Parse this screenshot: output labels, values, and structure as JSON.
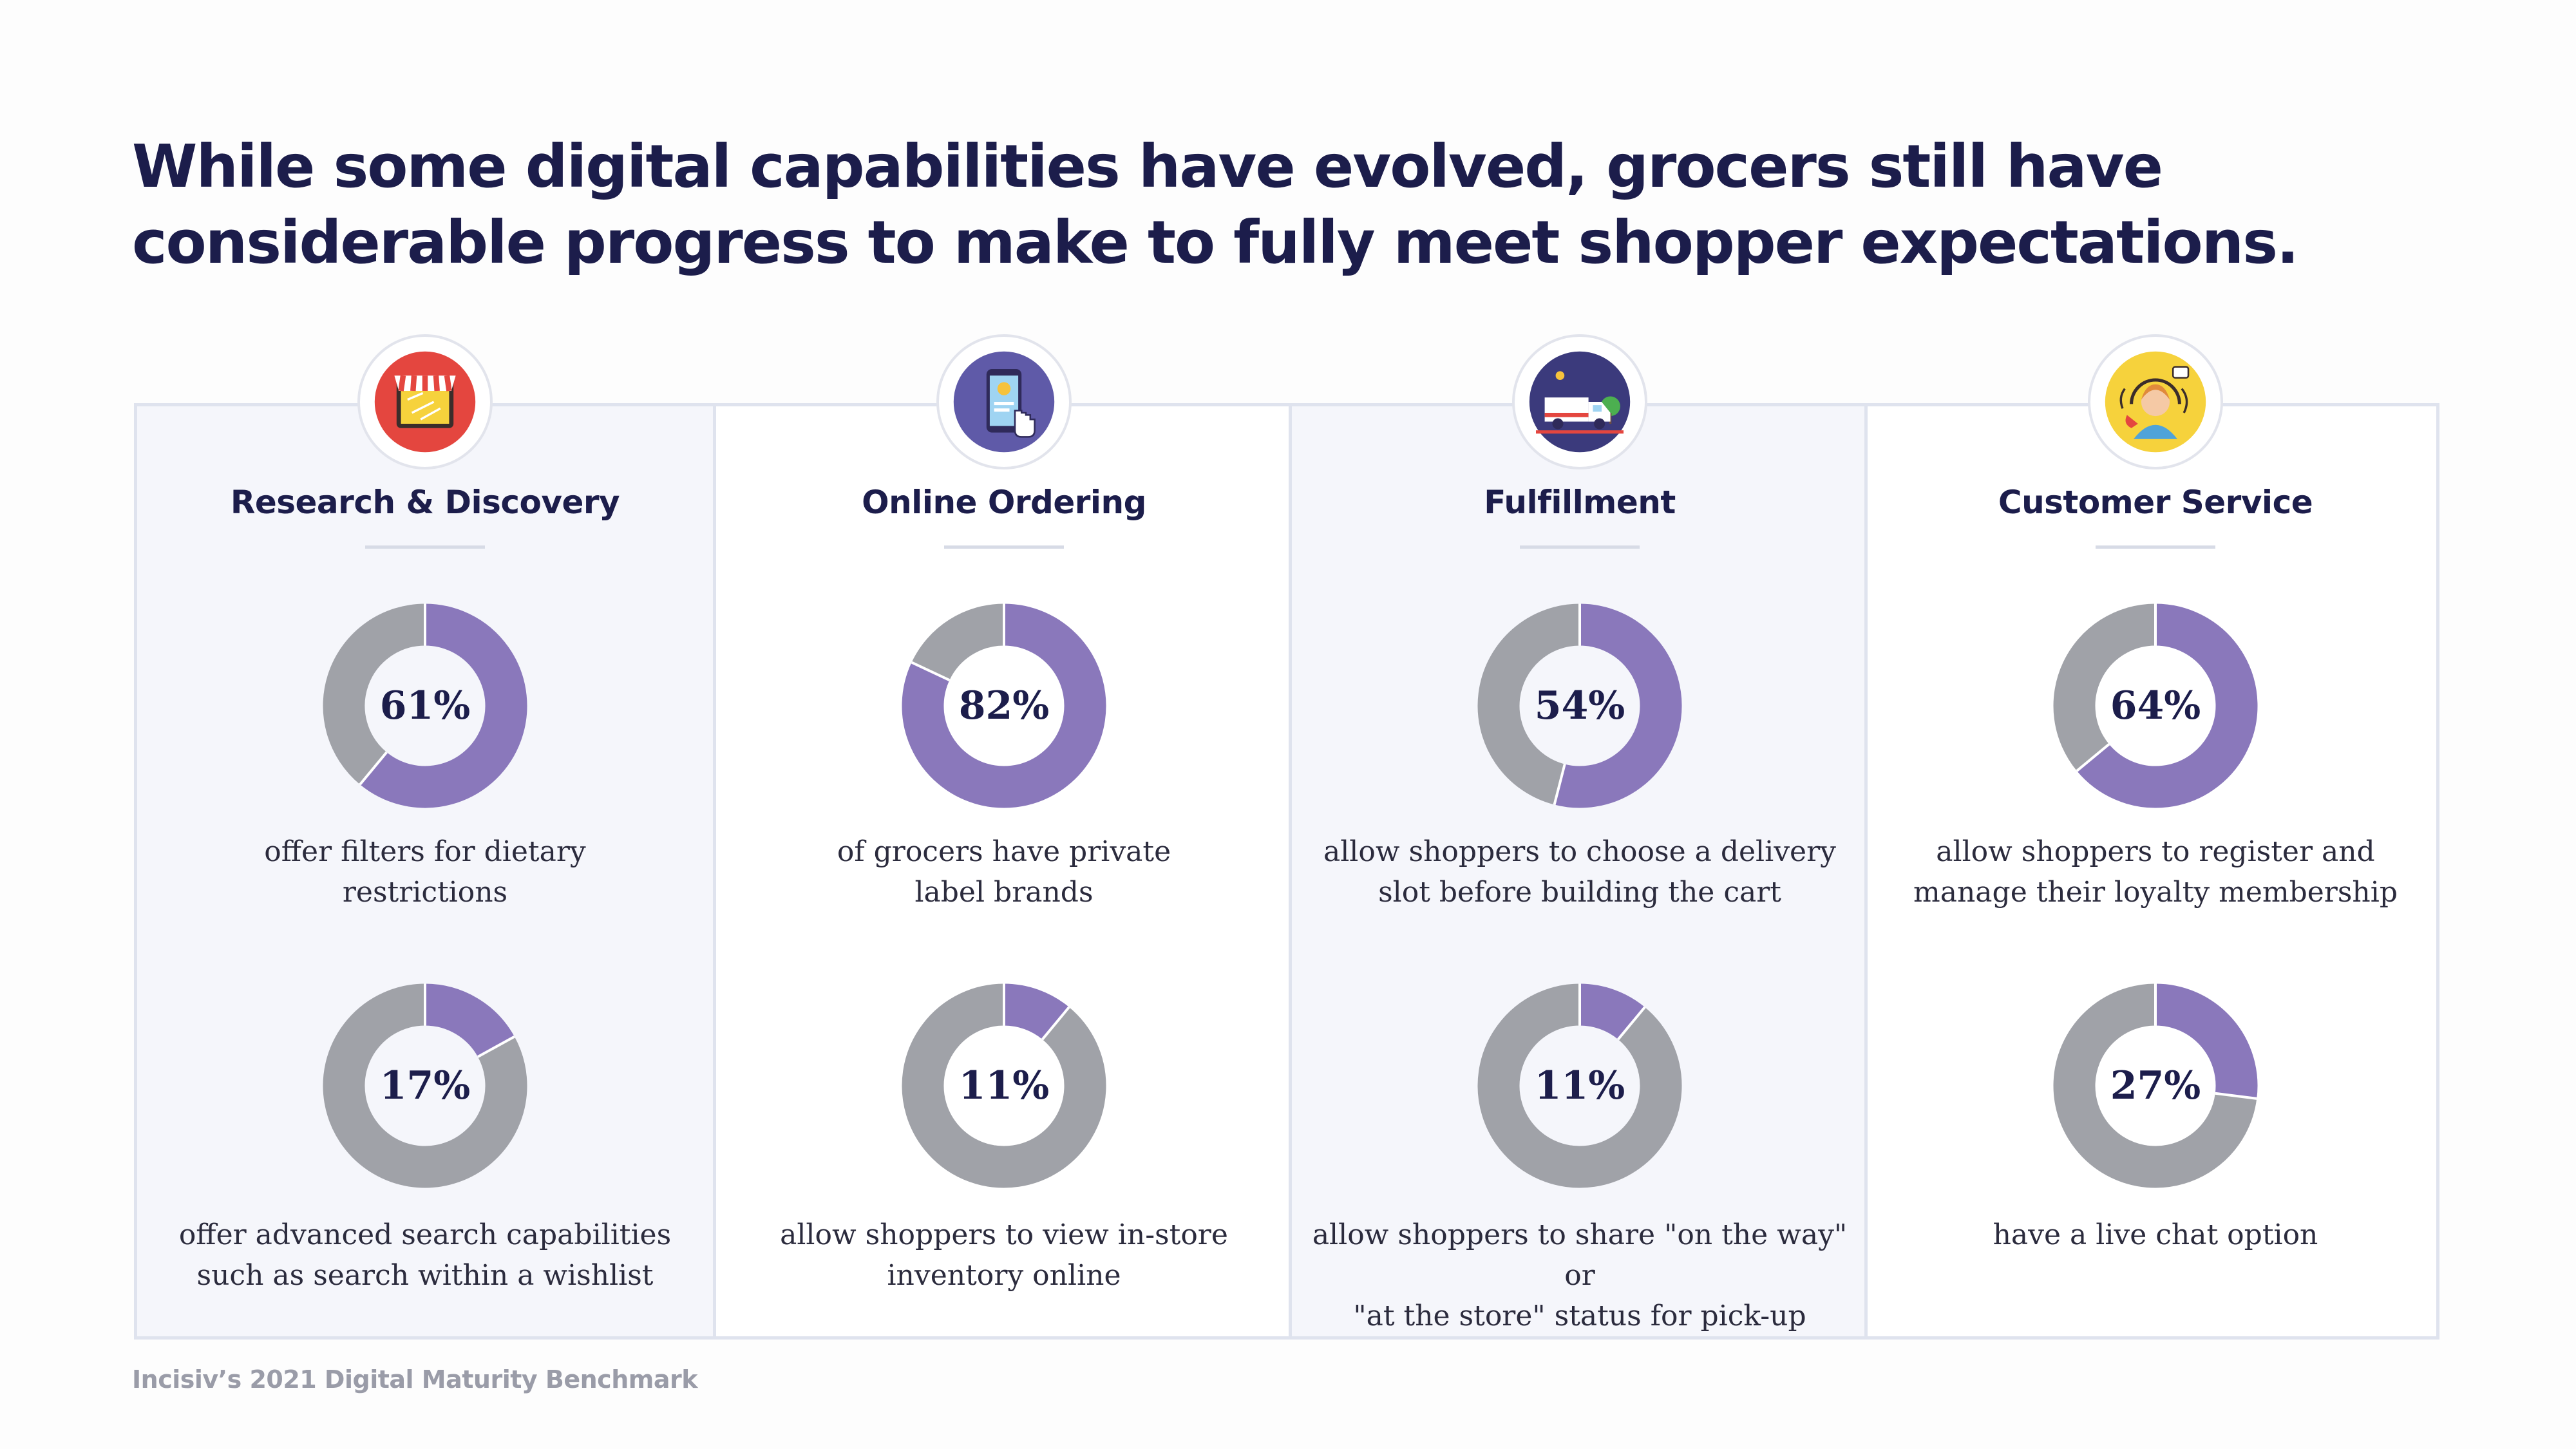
{
  "title": {
    "line1": "While some digital capabilities have evolved, grocers still have",
    "line2": "considerable progress to make to fully meet shopper expectations."
  },
  "colors": {
    "filled": "#8a78bb",
    "remaining": "#a0a2a8",
    "text": "#1c1d4b"
  },
  "chart_data": [
    {
      "type": "pie",
      "category": "Research & Discovery",
      "value": 61,
      "label": "61%",
      "caption": "offer filters for dietary\nrestrictions",
      "icon": "storefront-tablet-icon"
    },
    {
      "type": "pie",
      "category": "Research & Discovery",
      "value": 17,
      "label": "17%",
      "caption": "offer advanced search capabilities\nsuch as search within a wishlist",
      "icon": "storefront-tablet-icon"
    },
    {
      "type": "pie",
      "category": "Online Ordering",
      "value": 82,
      "label": "82%",
      "caption": "of grocers have private\nlabel brands",
      "icon": "phone-ordering-icon"
    },
    {
      "type": "pie",
      "category": "Online Ordering",
      "value": 11,
      "label": "11%",
      "caption": "allow shoppers to view in-store\ninventory online",
      "icon": "phone-ordering-icon"
    },
    {
      "type": "pie",
      "category": "Fulfillment",
      "value": 54,
      "label": "54%",
      "caption": "allow shoppers to choose a delivery\nslot before building the cart",
      "icon": "delivery-truck-icon"
    },
    {
      "type": "pie",
      "category": "Fulfillment",
      "value": 11,
      "label": "11%",
      "caption": "allow shoppers to share \"on the way\" or\n\"at the store\" status for pick-up",
      "icon": "delivery-truck-icon"
    },
    {
      "type": "pie",
      "category": "Customer Service",
      "value": 64,
      "label": "64%",
      "caption": "allow shoppers to register and\nmanage their loyalty membership",
      "icon": "support-agent-icon"
    },
    {
      "type": "pie",
      "category": "Customer Service",
      "value": 27,
      "label": "27%",
      "caption": "have a live chat option",
      "icon": "support-agent-icon"
    }
  ],
  "columns": [
    {
      "title": "Research & Discovery",
      "icon": "storefront-tablet-icon"
    },
    {
      "title": "Online Ordering",
      "icon": "phone-ordering-icon"
    },
    {
      "title": "Fulfillment",
      "icon": "delivery-truck-icon"
    },
    {
      "title": "Customer Service",
      "icon": "support-agent-icon"
    }
  ],
  "footer": "Incisiv’s 2021 Digital Maturity Benchmark"
}
